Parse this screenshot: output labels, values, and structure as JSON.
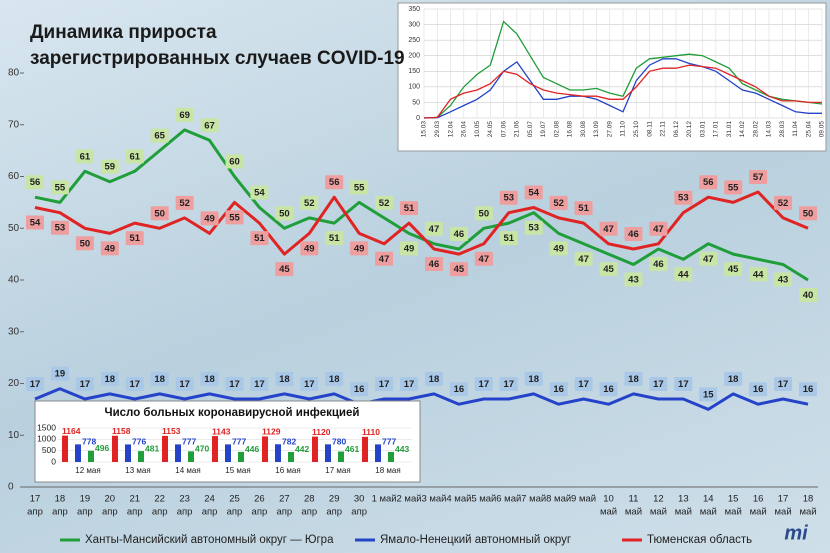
{
  "chart_data": [
    {
      "type": "line",
      "title": "Динамика прироста\nзарегистрированных случаев COVID-19",
      "categories": [
        [
          "17",
          "апр"
        ],
        [
          "18",
          "апр"
        ],
        [
          "19",
          "апр"
        ],
        [
          "20",
          "апр"
        ],
        [
          "21",
          "апр"
        ],
        [
          "22",
          "апр"
        ],
        [
          "23",
          "апр"
        ],
        [
          "24",
          "апр"
        ],
        [
          "25",
          "апр"
        ],
        [
          "26",
          "апр"
        ],
        [
          "27",
          "апр"
        ],
        [
          "28",
          "апр"
        ],
        [
          "29",
          "апр"
        ],
        [
          "30",
          "апр"
        ],
        [
          "1 май"
        ],
        [
          "2 май"
        ],
        [
          "3 май"
        ],
        [
          "4 май"
        ],
        [
          "5 май"
        ],
        [
          "6 май"
        ],
        [
          "7 май"
        ],
        [
          "8 май"
        ],
        [
          "9 май"
        ],
        [
          "10",
          "май"
        ],
        [
          "11",
          "май"
        ],
        [
          "12",
          "май"
        ],
        [
          "13",
          "май"
        ],
        [
          "14",
          "май"
        ],
        [
          "15",
          "май"
        ],
        [
          "16",
          "май"
        ],
        [
          "17",
          "май"
        ],
        [
          "18",
          "май"
        ]
      ],
      "series": [
        {
          "name": "Ханты-Мансийский автономный округ — Югра",
          "color": "#1f9e3a",
          "label_bg": "#c9e5a6",
          "values": [
            56,
            55,
            61,
            59,
            61,
            65,
            69,
            67,
            60,
            54,
            50,
            52,
            51,
            55,
            52,
            49,
            47,
            46,
            50,
            51,
            53,
            49,
            47,
            45,
            43,
            46,
            44,
            47,
            45,
            44,
            43,
            40
          ]
        },
        {
          "name": "Ямало-Ненецкий автономный округ",
          "color": "#2443c9",
          "label_bg": "#a9c7e6",
          "values": [
            17,
            19,
            17,
            18,
            17,
            18,
            17,
            18,
            17,
            17,
            18,
            17,
            18,
            16,
            17,
            17,
            18,
            16,
            17,
            17,
            18,
            16,
            17,
            16,
            18,
            17,
            17,
            15,
            18,
            16,
            17,
            16
          ]
        },
        {
          "name": "Тюменская область",
          "color": "#e02323",
          "label_bg": "#ee9e9e",
          "values": [
            54,
            53,
            50,
            49,
            51,
            50,
            52,
            49,
            55,
            51,
            45,
            49,
            56,
            49,
            47,
            51,
            46,
            45,
            47,
            53,
            54,
            52,
            51,
            47,
            46,
            47,
            53,
            56,
            55,
            57,
            52,
            50
          ]
        }
      ],
      "ylim": [
        0,
        80
      ],
      "yticks": [
        0,
        10,
        20,
        30,
        40,
        50,
        60,
        70,
        80
      ],
      "grid": false,
      "legend": "bottom"
    },
    {
      "type": "line",
      "categories": [
        "15.03",
        "29.03",
        "12.04",
        "26.04",
        "10.05",
        "24.05",
        "07.06",
        "21.06",
        "05.07",
        "19.07",
        "02.08",
        "16.08",
        "30.08",
        "13.09",
        "27.09",
        "11.10",
        "25.10",
        "08.11",
        "22.11",
        "06.12",
        "20.12",
        "03.01",
        "17.01",
        "31.01",
        "14.02",
        "28.02",
        "14.03",
        "28.03",
        "11.04",
        "25.04",
        "09.05"
      ],
      "series": [
        {
          "color": "#1f9e3a",
          "values": [
            0,
            2,
            40,
            100,
            140,
            170,
            310,
            270,
            200,
            130,
            110,
            90,
            90,
            95,
            80,
            70,
            160,
            190,
            195,
            200,
            205,
            200,
            180,
            160,
            110,
            90,
            70,
            60,
            55,
            50,
            45
          ]
        },
        {
          "color": "#2443c9",
          "values": [
            0,
            1,
            20,
            40,
            60,
            90,
            150,
            180,
            120,
            60,
            60,
            70,
            70,
            60,
            40,
            20,
            120,
            170,
            190,
            190,
            175,
            165,
            150,
            120,
            90,
            80,
            60,
            40,
            20,
            15,
            15
          ]
        },
        {
          "color": "#e02323",
          "values": [
            0,
            2,
            60,
            80,
            90,
            110,
            150,
            140,
            110,
            90,
            80,
            75,
            70,
            70,
            60,
            60,
            100,
            150,
            160,
            160,
            170,
            165,
            160,
            140,
            120,
            100,
            70,
            55,
            55,
            50,
            50
          ]
        }
      ],
      "ylim": [
        0,
        350
      ],
      "yticks": [
        0,
        50,
        100,
        150,
        200,
        250,
        300,
        350
      ],
      "grid": true
    },
    {
      "type": "bar",
      "title": "Число больных коронавирусной инфекцией",
      "categories": [
        "12 мая",
        "13 мая",
        "14 мая",
        "15 мая",
        "16 мая",
        "17 мая",
        "18 мая"
      ],
      "series": [
        {
          "color": "#e02323",
          "values": [
            1164,
            1158,
            1153,
            1143,
            1129,
            1120,
            1110
          ]
        },
        {
          "color": "#2443c9",
          "values": [
            778,
            776,
            777,
            777,
            782,
            780,
            777
          ]
        },
        {
          "color": "#1f9e3a",
          "values": [
            496,
            481,
            470,
            446,
            442,
            461,
            443
          ]
        }
      ],
      "ylim": [
        0,
        1500
      ],
      "yticks": [
        0,
        500,
        1000,
        1500
      ]
    }
  ],
  "logo": "mi"
}
